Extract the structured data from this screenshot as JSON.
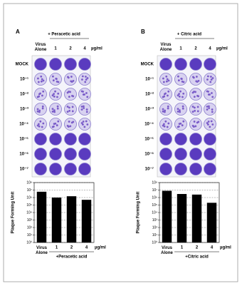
{
  "plates": [
    {
      "panel": "A",
      "treatment": "+ Peracetic acid",
      "columns": [
        "Virus Alone",
        "1",
        "2",
        "4"
      ],
      "unit": "µg/ml",
      "rows": [
        "MOCK",
        "10⁻¹",
        "10⁻²",
        "10⁻³",
        "10⁻⁴",
        "10⁻⁵",
        "10⁻⁶",
        "10⁻⁷"
      ]
    },
    {
      "panel": "B",
      "treatment": "+ Citric acid",
      "columns": [
        "Virus Alone",
        "1",
        "2",
        "4"
      ],
      "unit": "µg/ml",
      "rows": [
        "MOCK",
        "10⁻¹",
        "10⁻²",
        "10⁻³",
        "10⁻⁴",
        "10⁻⁵",
        "10⁻⁶",
        "10⁻⁷"
      ]
    }
  ],
  "chart_data": [
    {
      "type": "bar",
      "y_label": "Plaque Forming Unit",
      "x_label": "+Peracetic acid",
      "unit": "µg/ml",
      "categories": [
        "Virus Alone",
        "1",
        "2",
        "4"
      ],
      "values": [
        6000000,
        1000000,
        1500000,
        500000
      ],
      "color": "#000000",
      "log_scale": true,
      "ylim": [
        1,
        100000000
      ],
      "grid": true,
      "yticks": [
        {
          "value": 1,
          "label": "10⁰"
        },
        {
          "value": 10,
          "label": "10¹"
        },
        {
          "value": 100,
          "label": "10²"
        },
        {
          "value": 1000,
          "label": "10³"
        },
        {
          "value": 10000,
          "label": "10⁴"
        },
        {
          "value": 100000,
          "label": "10⁵"
        },
        {
          "value": 1000000,
          "label": "10⁶"
        },
        {
          "value": 10000000,
          "label": "10⁷"
        },
        {
          "value": 100000000,
          "label": "10⁸"
        }
      ]
    },
    {
      "type": "bar",
      "y_label": "Plaque Forming Unit",
      "x_label": "+Citric acid",
      "unit": "µg/ml",
      "categories": [
        "Virus Alone",
        "1",
        "2",
        "4"
      ],
      "values": [
        8000000,
        3000000,
        2500000,
        200000
      ],
      "color": "#000000",
      "log_scale": true,
      "ylim": [
        1,
        100000000
      ],
      "grid": true,
      "yticks": [
        {
          "value": 1,
          "label": "10⁰"
        },
        {
          "value": 10,
          "label": "10¹"
        },
        {
          "value": 100,
          "label": "10²"
        },
        {
          "value": 1000,
          "label": "10³"
        },
        {
          "value": 10000,
          "label": "10⁴"
        },
        {
          "value": 100000,
          "label": "10⁵"
        },
        {
          "value": 1000000,
          "label": "10⁶"
        },
        {
          "value": 10000000,
          "label": "10⁷"
        },
        {
          "value": 100000000,
          "label": "10⁸"
        }
      ]
    }
  ]
}
